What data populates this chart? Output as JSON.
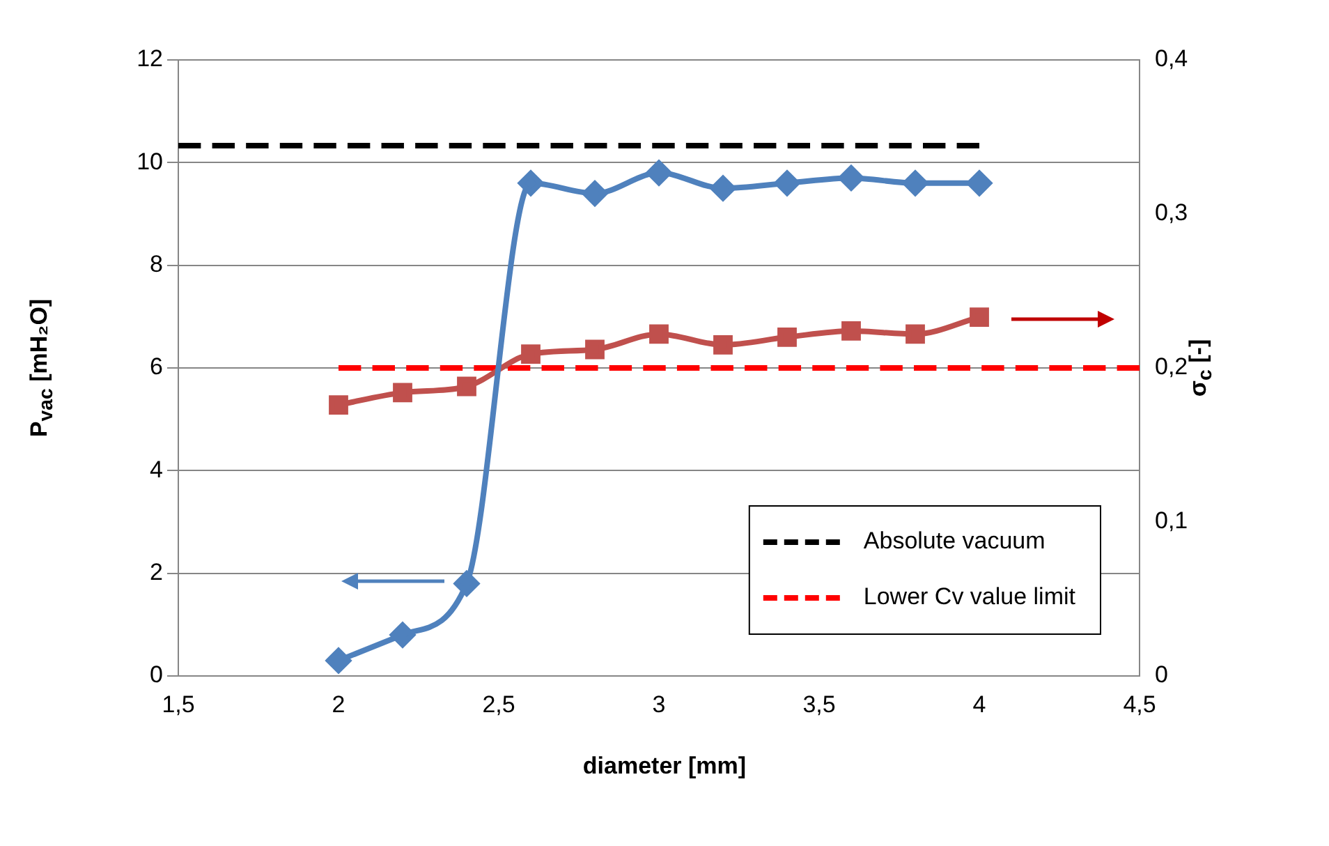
{
  "chart_data": {
    "type": "line",
    "xlabel": "diameter [mm]",
    "ylabel": "P$_{vac}$ [mH₂O]",
    "y2label": "σ$_{c}$ [-]",
    "x": [
      2,
      2.2,
      2.4,
      2.6,
      2.8,
      3,
      3.2,
      3.4,
      3.6,
      3.8,
      4
    ],
    "series": [
      {
        "color": "#4f81bd",
        "marker": "diamond",
        "values": [
          0.3,
          0.8,
          1.8,
          9.6,
          9.4,
          9.8,
          9.5,
          9.6,
          9.7,
          9.6,
          9.6
        ]
      },
      {
        "color": "#c0504d",
        "marker": "square",
        "axis": "y2",
        "values": [
          0.176,
          0.184,
          0.188,
          0.209,
          0.212,
          0.222,
          0.215,
          0.22,
          0.224,
          0.222,
          0.233
        ]
      },
      {
        "name": "Absolute vacuum",
        "color": "#000000",
        "marker": "none",
        "line_style": "dashed",
        "x": [
          1.5,
          4
        ],
        "values": [
          10.33,
          10.33
        ]
      },
      {
        "name": "Lower Cv value limit",
        "color": "#ff0000",
        "marker": "none",
        "line_style": "dashed",
        "axis": "y2",
        "x": [
          2,
          4.5
        ],
        "values": [
          0.2,
          0.2
        ]
      }
    ],
    "xlim": [
      1.5,
      4.5
    ],
    "xticks": [
      {
        "value": 1.5,
        "label": "1,5"
      },
      2,
      {
        "value": 2.5,
        "label": "2,5"
      },
      3,
      {
        "value": 3.5,
        "label": "3,5"
      },
      4,
      {
        "value": 4.5,
        "label": "4,5"
      }
    ],
    "ylim": [
      0,
      12
    ],
    "yticks": [
      0,
      2,
      4,
      6,
      8,
      10,
      12
    ],
    "y2lim": [
      0,
      0.4
    ],
    "y2ticks": [
      0,
      {
        "value": 0.1,
        "label": "0,1"
      },
      {
        "value": 0.2,
        "label": "0,2"
      },
      {
        "value": 0.3,
        "label": "0,3"
      },
      {
        "value": 0.4,
        "label": "0,4"
      }
    ],
    "grid": "y",
    "legend": "bottom right"
  }
}
